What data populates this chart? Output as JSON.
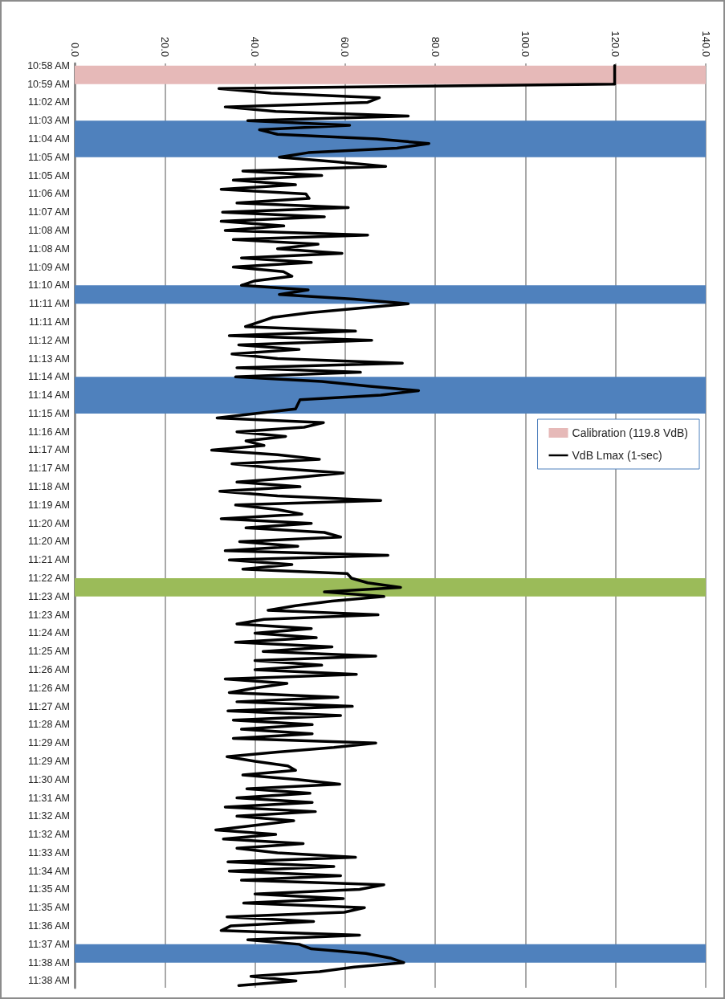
{
  "chart_data": {
    "type": "line",
    "orientation": "horizontal",
    "categories": [
      "10:58 AM",
      null,
      null,
      null,
      "10:59 AM",
      null,
      null,
      null,
      "11:02 AM",
      null,
      null,
      null,
      "11:03 AM",
      null,
      null,
      null,
      "11:04 AM",
      null,
      null,
      null,
      "11:05 AM",
      null,
      null,
      null,
      "11:05 AM",
      null,
      null,
      null,
      "11:06 AM",
      null,
      null,
      null,
      "11:07 AM",
      null,
      null,
      null,
      "11:08 AM",
      null,
      null,
      null,
      "11:08 AM",
      null,
      null,
      null,
      "11:09 AM",
      null,
      null,
      null,
      "11:10 AM",
      null,
      null,
      null,
      "11:11 AM",
      null,
      null,
      null,
      "11:11 AM",
      null,
      null,
      null,
      "11:12 AM",
      null,
      null,
      null,
      "11:13 AM",
      null,
      null,
      null,
      "11:14 AM",
      null,
      null,
      null,
      "11:14 AM",
      null,
      null,
      null,
      "11:15 AM",
      null,
      null,
      null,
      "11:16 AM",
      null,
      null,
      null,
      "11:17 AM",
      null,
      null,
      null,
      "11:17 AM",
      null,
      null,
      null,
      "11:18 AM",
      null,
      null,
      null,
      "11:19 AM",
      null,
      null,
      null,
      "11:20 AM",
      null,
      null,
      null,
      "11:20 AM",
      null,
      null,
      null,
      "11:21 AM",
      null,
      null,
      null,
      "11:22 AM",
      null,
      null,
      null,
      "11:23 AM",
      null,
      null,
      null,
      "11:23 AM",
      null,
      null,
      null,
      "11:24 AM",
      null,
      null,
      null,
      "11:25 AM",
      null,
      null,
      null,
      "11:26 AM",
      null,
      null,
      null,
      "11:26 AM",
      null,
      null,
      null,
      "11:27 AM",
      null,
      null,
      null,
      "11:28 AM",
      null,
      null,
      null,
      "11:29 AM",
      null,
      null,
      null,
      "11:29 AM",
      null,
      null,
      null,
      "11:30 AM",
      null,
      null,
      null,
      "11:31 AM",
      null,
      null,
      null,
      "11:32 AM",
      null,
      null,
      null,
      "11:32 AM",
      null,
      null,
      null,
      "11:33 AM",
      null,
      null,
      null,
      "11:34 AM",
      null,
      null,
      null,
      "11:35 AM",
      null,
      null,
      null,
      "11:35 AM",
      null,
      null,
      null,
      "11:36 AM",
      null,
      null,
      null,
      "11:37 AM",
      null,
      null,
      null,
      "11:38 AM",
      null,
      null,
      null,
      "11:38 AM",
      null
    ],
    "xlim": [
      0,
      140
    ],
    "xticks": [
      {
        "value": 0,
        "label": "0.0"
      },
      {
        "value": 20,
        "label": "20.0"
      },
      {
        "value": 40,
        "label": "40.0"
      },
      {
        "value": 60,
        "label": "60.0"
      },
      {
        "value": 80,
        "label": "80.0"
      },
      {
        "value": 100,
        "label": "100.0"
      },
      {
        "value": 120,
        "label": "120.0"
      },
      {
        "value": 140,
        "label": "140.0"
      }
    ],
    "grid": "x",
    "legend": "right",
    "marker": "none",
    "line_style": "solid",
    "bands": [
      {
        "axis": "y",
        "from": "10:58 AM",
        "to": "10:59 AM",
        "label": "Calibration (119.8 VdB)",
        "color": "#e6b9b8"
      },
      {
        "axis": "y",
        "from": "11:03 AM",
        "to": "11:05 AM",
        "color": "#4f81bd"
      },
      {
        "axis": "y",
        "from": "11:10 AM",
        "to": "11:11 AM",
        "color": "#4f81bd"
      },
      {
        "axis": "y",
        "from": "11:14 AM",
        "to": "11:15 AM",
        "color": "#4f81bd"
      },
      {
        "axis": "y",
        "from": "11:22 AM",
        "to": "11:23 AM",
        "color": "#9bbb59"
      },
      {
        "axis": "y",
        "from": "11:37 AM",
        "to": "11:38 AM",
        "color": "#4f81bd"
      }
    ],
    "series": [
      {
        "name": "VdB Lmax (1-sec)",
        "color": "#000000",
        "values": [
          119.8,
          119.8,
          119.8,
          119.8,
          119.8,
          32,
          43.6,
          67.6,
          65,
          33.4,
          44.6,
          74,
          38.4,
          61,
          41,
          45,
          67,
          78.6,
          71.5,
          51.8,
          45.4,
          58,
          69,
          37.3,
          54.8,
          35.2,
          49,
          32.5,
          51.3,
          52,
          36,
          60.7,
          32.8,
          55.4,
          32.5,
          46.4,
          33.4,
          65,
          35.2,
          54,
          45,
          59.3,
          37,
          52.5,
          35.2,
          46.3,
          48.2,
          40,
          37,
          51.8,
          45.4,
          62,
          74,
          63.2,
          52,
          44,
          41,
          37.9,
          62.3,
          34.3,
          65.9,
          36.4,
          49.8,
          34.9,
          45,
          72.7,
          36,
          63.4,
          35.7,
          54.8,
          65,
          76.3,
          67.9,
          50,
          49.5,
          49,
          40,
          31.6,
          55.2,
          50.9,
          36,
          46.8,
          38,
          42,
          30.4,
          45,
          54.3,
          34.9,
          45,
          59.6,
          49,
          36,
          50,
          32.2,
          45,
          67.9,
          35.7,
          45,
          50.4,
          32.5,
          52.5,
          38,
          55.4,
          59,
          36.6,
          49.5,
          33.4,
          69.5,
          34.3,
          48.2,
          37.3,
          60.5,
          61.4,
          65,
          72.3,
          55.4,
          68.6,
          57.1,
          49,
          42.9,
          67.3,
          42,
          36,
          52.5,
          40,
          53.6,
          35.7,
          57.1,
          41.8,
          66.8,
          40,
          54.8,
          40,
          62.5,
          33.4,
          47.1,
          40,
          34.3,
          58.4,
          36,
          61.6,
          34,
          59,
          35.2,
          52.7,
          37,
          52.7,
          35.2,
          66.8,
          57.5,
          45,
          33.8,
          40,
          47.3,
          49,
          37.3,
          49.5,
          58.8,
          38.2,
          52.2,
          36,
          52.7,
          33.4,
          53.4,
          36,
          48.6,
          40,
          31.3,
          44.6,
          33,
          50.7,
          36,
          45,
          62.3,
          34,
          57.5,
          34.3,
          59,
          37,
          68.6,
          63.2,
          40,
          59.6,
          37.5,
          64.3,
          59.8,
          33.8,
          53,
          34.6,
          32.5,
          63.2,
          38.4,
          49.8,
          52.5,
          64.6,
          70,
          73,
          62,
          54.3,
          39.1,
          49.1,
          36.4
        ]
      }
    ]
  }
}
